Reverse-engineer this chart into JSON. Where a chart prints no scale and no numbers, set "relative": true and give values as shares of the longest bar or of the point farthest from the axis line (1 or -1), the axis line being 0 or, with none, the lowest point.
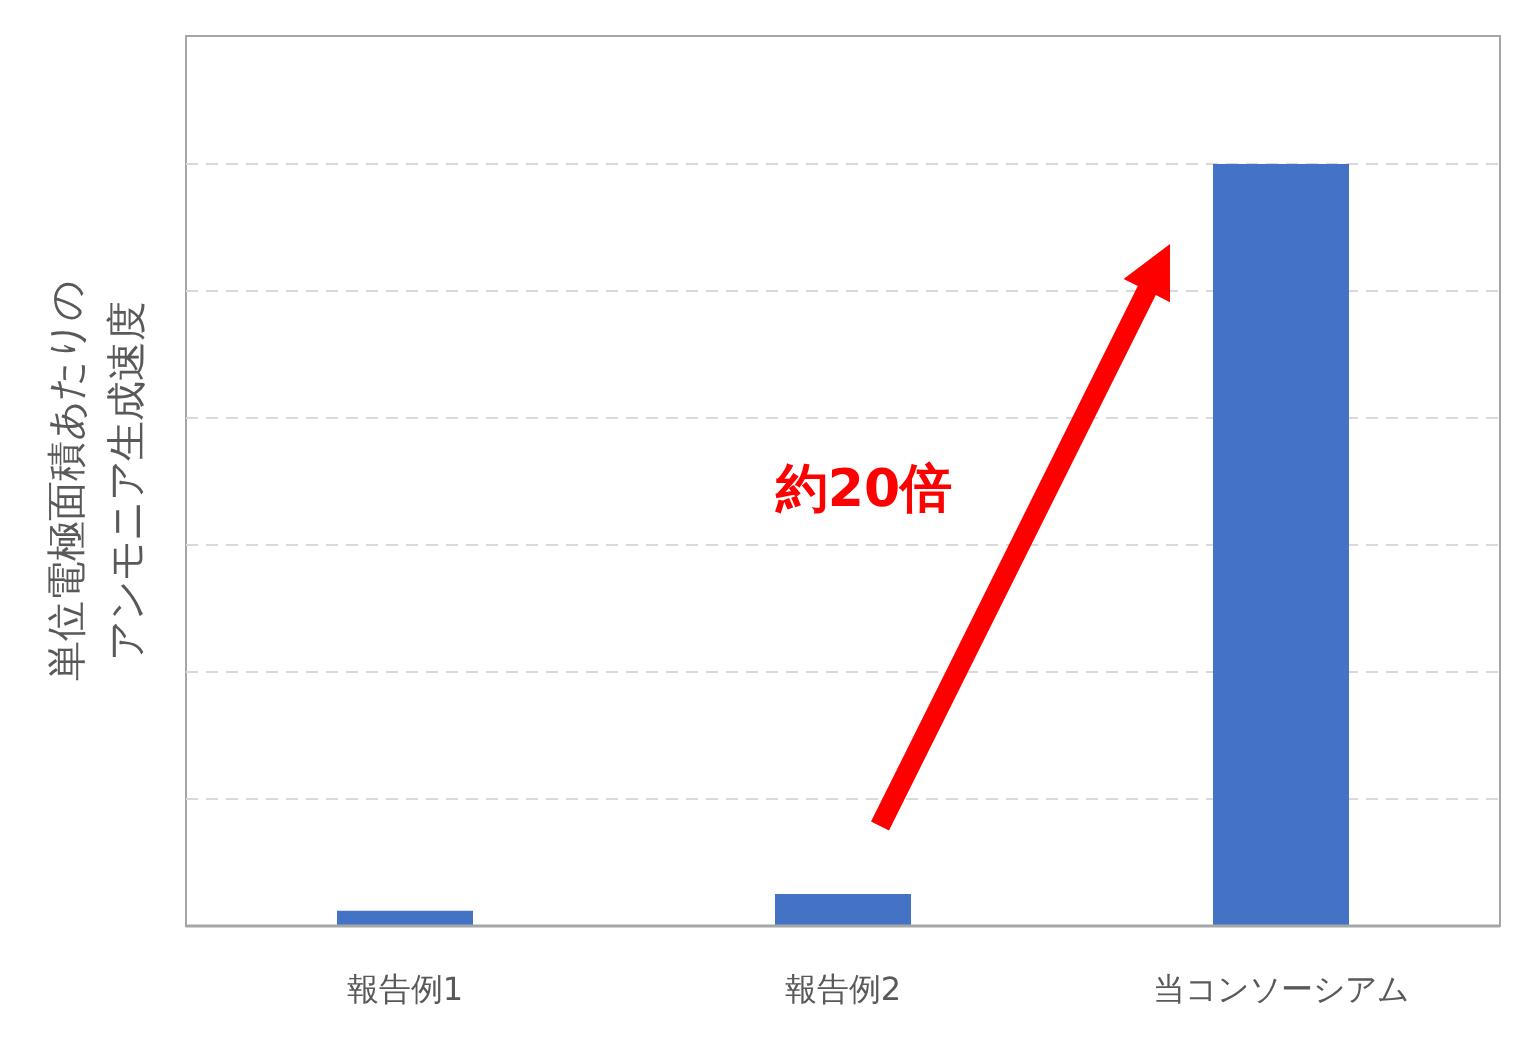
{
  "chart_data": {
    "type": "bar",
    "ylabel": "単位電極面積あたりのアンモニア生成速度",
    "categories": [
      "報告例1",
      "報告例2",
      "当コンソーシアム"
    ],
    "values": [
      0.02,
      0.042,
      1
    ],
    "color": "#4472c4",
    "relative": true,
    "grid": "y",
    "annotations": [
      "約20倍"
    ]
  }
}
